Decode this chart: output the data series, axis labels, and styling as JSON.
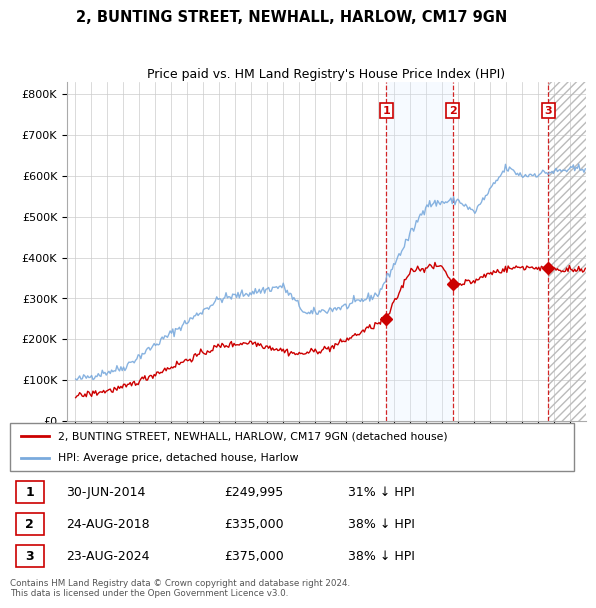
{
  "title_line1": "2, BUNTING STREET, NEWHALL, HARLOW, CM17 9GN",
  "title_line2": "Price paid vs. HM Land Registry's House Price Index (HPI)",
  "yticks": [
    0,
    100000,
    200000,
    300000,
    400000,
    500000,
    600000,
    700000,
    800000
  ],
  "ytick_labels": [
    "£0",
    "£100K",
    "£200K",
    "£300K",
    "£400K",
    "£500K",
    "£600K",
    "£700K",
    "£800K"
  ],
  "xlim_start": 1994.5,
  "xlim_end": 2027.0,
  "ylim": [
    0,
    830000
  ],
  "hpi_color": "#7aaadd",
  "price_color": "#cc0000",
  "shade_color": "#ddeeff",
  "sale_points": [
    {
      "date_num": 2014.5,
      "price": 249995,
      "label": "1"
    },
    {
      "date_num": 2018.65,
      "price": 335000,
      "label": "2"
    },
    {
      "date_num": 2024.65,
      "price": 375000,
      "label": "3"
    }
  ],
  "sale_table": [
    {
      "num": "1",
      "date": "30-JUN-2014",
      "price": "£249,995",
      "hpi": "31% ↓ HPI"
    },
    {
      "num": "2",
      "date": "24-AUG-2018",
      "price": "£335,000",
      "hpi": "38% ↓ HPI"
    },
    {
      "num": "3",
      "date": "23-AUG-2024",
      "price": "£375,000",
      "hpi": "38% ↓ HPI"
    }
  ],
  "legend_entries": [
    "2, BUNTING STREET, NEWHALL, HARLOW, CM17 9GN (detached house)",
    "HPI: Average price, detached house, Harlow"
  ],
  "footnote": "Contains HM Land Registry data © Crown copyright and database right 2024.\nThis data is licensed under the Open Government Licence v3.0.",
  "background_color": "#ffffff",
  "grid_color": "#cccccc"
}
